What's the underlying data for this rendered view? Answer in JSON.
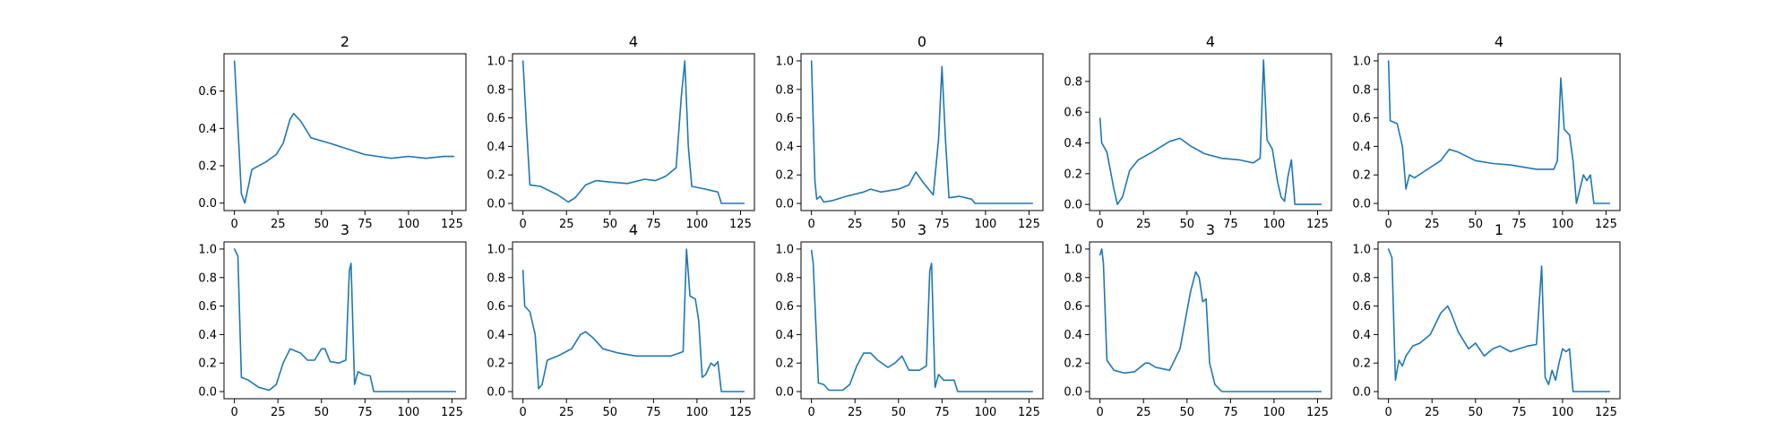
{
  "figure": {
    "line_color": "#1f77b4"
  },
  "chart_data": [
    {
      "type": "line",
      "title": "2",
      "xlim": [
        -6,
        133
      ],
      "ylim": [
        -0.04,
        0.8
      ],
      "xticks": [
        0,
        25,
        50,
        75,
        100,
        125
      ],
      "yticks": [
        0.0,
        0.2,
        0.4,
        0.6
      ],
      "yticklabels": [
        "0.0",
        "0.2",
        "0.4",
        "0.6"
      ],
      "points": [
        [
          0,
          0.76
        ],
        [
          4,
          0.05
        ],
        [
          6,
          0.0
        ],
        [
          10,
          0.18
        ],
        [
          18,
          0.22
        ],
        [
          24,
          0.26
        ],
        [
          28,
          0.32
        ],
        [
          32,
          0.45
        ],
        [
          34,
          0.48
        ],
        [
          38,
          0.44
        ],
        [
          44,
          0.35
        ],
        [
          55,
          0.32
        ],
        [
          65,
          0.29
        ],
        [
          75,
          0.26
        ],
        [
          90,
          0.24
        ],
        [
          100,
          0.25
        ],
        [
          110,
          0.24
        ],
        [
          120,
          0.25
        ],
        [
          126,
          0.25
        ]
      ]
    },
    {
      "type": "line",
      "title": "4",
      "xlim": [
        -6,
        133
      ],
      "ylim": [
        -0.05,
        1.05
      ],
      "xticks": [
        0,
        25,
        50,
        75,
        100,
        125
      ],
      "yticks": [
        0.0,
        0.2,
        0.4,
        0.6,
        0.8,
        1.0
      ],
      "yticklabels": [
        "0.0",
        "0.2",
        "0.4",
        "0.6",
        "0.8",
        "1.0"
      ],
      "points": [
        [
          0,
          1.0
        ],
        [
          2,
          0.55
        ],
        [
          4,
          0.13
        ],
        [
          10,
          0.12
        ],
        [
          20,
          0.06
        ],
        [
          26,
          0.01
        ],
        [
          30,
          0.04
        ],
        [
          36,
          0.13
        ],
        [
          42,
          0.16
        ],
        [
          50,
          0.15
        ],
        [
          60,
          0.14
        ],
        [
          70,
          0.17
        ],
        [
          76,
          0.16
        ],
        [
          82,
          0.19
        ],
        [
          88,
          0.25
        ],
        [
          91,
          0.75
        ],
        [
          93,
          1.0
        ],
        [
          95,
          0.4
        ],
        [
          97,
          0.12
        ],
        [
          105,
          0.1
        ],
        [
          112,
          0.08
        ],
        [
          114,
          0.0
        ],
        [
          127,
          0.0
        ]
      ]
    },
    {
      "type": "line",
      "title": "0",
      "xlim": [
        -6,
        133
      ],
      "ylim": [
        -0.05,
        1.05
      ],
      "xticks": [
        0,
        25,
        50,
        75,
        100,
        125
      ],
      "yticks": [
        0.0,
        0.2,
        0.4,
        0.6,
        0.8,
        1.0
      ],
      "yticklabels": [
        "0.0",
        "0.2",
        "0.4",
        "0.6",
        "0.8",
        "1.0"
      ],
      "points": [
        [
          0,
          1.0
        ],
        [
          2,
          0.16
        ],
        [
          3,
          0.03
        ],
        [
          5,
          0.05
        ],
        [
          7,
          0.01
        ],
        [
          12,
          0.02
        ],
        [
          20,
          0.05
        ],
        [
          30,
          0.08
        ],
        [
          34,
          0.1
        ],
        [
          40,
          0.08
        ],
        [
          50,
          0.1
        ],
        [
          56,
          0.13
        ],
        [
          60,
          0.22
        ],
        [
          64,
          0.15
        ],
        [
          70,
          0.06
        ],
        [
          73,
          0.45
        ],
        [
          75,
          0.96
        ],
        [
          77,
          0.45
        ],
        [
          79,
          0.04
        ],
        [
          85,
          0.05
        ],
        [
          92,
          0.03
        ],
        [
          94,
          0.0
        ],
        [
          127,
          0.0
        ]
      ]
    },
    {
      "type": "line",
      "title": "4",
      "xlim": [
        -6,
        133
      ],
      "ylim": [
        -0.04,
        0.98
      ],
      "xticks": [
        0,
        25,
        50,
        75,
        100,
        125
      ],
      "yticks": [
        0.0,
        0.2,
        0.4,
        0.6,
        0.8
      ],
      "yticklabels": [
        "0.0",
        "0.2",
        "0.4",
        "0.6",
        "0.8"
      ],
      "points": [
        [
          0,
          0.56
        ],
        [
          1,
          0.4
        ],
        [
          4,
          0.34
        ],
        [
          8,
          0.1
        ],
        [
          10,
          0.0
        ],
        [
          13,
          0.05
        ],
        [
          17,
          0.22
        ],
        [
          22,
          0.29
        ],
        [
          30,
          0.34
        ],
        [
          40,
          0.41
        ],
        [
          46,
          0.43
        ],
        [
          52,
          0.38
        ],
        [
          60,
          0.33
        ],
        [
          70,
          0.3
        ],
        [
          80,
          0.29
        ],
        [
          88,
          0.27
        ],
        [
          92,
          0.3
        ],
        [
          94,
          0.94
        ],
        [
          96,
          0.42
        ],
        [
          99,
          0.36
        ],
        [
          102,
          0.15
        ],
        [
          104,
          0.05
        ],
        [
          106,
          0.02
        ],
        [
          108,
          0.18
        ],
        [
          110,
          0.29
        ],
        [
          112,
          0.0
        ],
        [
          127,
          0.0
        ]
      ]
    },
    {
      "type": "line",
      "title": "4",
      "xlim": [
        -6,
        133
      ],
      "ylim": [
        -0.05,
        1.05
      ],
      "xticks": [
        0,
        25,
        50,
        75,
        100,
        125
      ],
      "yticks": [
        0.0,
        0.2,
        0.4,
        0.6,
        0.8,
        1.0
      ],
      "yticklabels": [
        "0.0",
        "0.2",
        "0.4",
        "0.6",
        "0.8",
        "1.0"
      ],
      "points": [
        [
          0,
          1.0
        ],
        [
          1,
          0.58
        ],
        [
          5,
          0.56
        ],
        [
          8,
          0.4
        ],
        [
          10,
          0.1
        ],
        [
          12,
          0.2
        ],
        [
          15,
          0.18
        ],
        [
          20,
          0.22
        ],
        [
          30,
          0.3
        ],
        [
          35,
          0.38
        ],
        [
          40,
          0.36
        ],
        [
          50,
          0.3
        ],
        [
          60,
          0.28
        ],
        [
          70,
          0.27
        ],
        [
          85,
          0.24
        ],
        [
          95,
          0.24
        ],
        [
          97,
          0.3
        ],
        [
          99,
          0.88
        ],
        [
          101,
          0.52
        ],
        [
          104,
          0.48
        ],
        [
          106,
          0.3
        ],
        [
          108,
          0.0
        ],
        [
          112,
          0.2
        ],
        [
          114,
          0.16
        ],
        [
          116,
          0.2
        ],
        [
          118,
          0.0
        ],
        [
          127,
          0.0
        ]
      ]
    },
    {
      "type": "line",
      "title": "3",
      "xlim": [
        -6,
        133
      ],
      "ylim": [
        -0.05,
        1.05
      ],
      "xticks": [
        0,
        25,
        50,
        75,
        100,
        125
      ],
      "yticks": [
        0.0,
        0.2,
        0.4,
        0.6,
        0.8,
        1.0
      ],
      "yticklabels": [
        "0.0",
        "0.2",
        "0.4",
        "0.6",
        "0.8",
        "1.0"
      ],
      "points": [
        [
          0,
          1.0
        ],
        [
          2,
          0.95
        ],
        [
          4,
          0.1
        ],
        [
          8,
          0.08
        ],
        [
          14,
          0.03
        ],
        [
          20,
          0.01
        ],
        [
          24,
          0.05
        ],
        [
          28,
          0.2
        ],
        [
          32,
          0.3
        ],
        [
          38,
          0.27
        ],
        [
          42,
          0.22
        ],
        [
          46,
          0.22
        ],
        [
          50,
          0.3
        ],
        [
          52,
          0.3
        ],
        [
          55,
          0.21
        ],
        [
          60,
          0.2
        ],
        [
          64,
          0.22
        ],
        [
          66,
          0.85
        ],
        [
          67,
          0.9
        ],
        [
          69,
          0.05
        ],
        [
          71,
          0.14
        ],
        [
          74,
          0.12
        ],
        [
          78,
          0.11
        ],
        [
          80,
          0.0
        ],
        [
          127,
          0.0
        ]
      ]
    },
    {
      "type": "line",
      "title": "4",
      "xlim": [
        -6,
        133
      ],
      "ylim": [
        -0.05,
        1.05
      ],
      "xticks": [
        0,
        25,
        50,
        75,
        100,
        125
      ],
      "yticks": [
        0.0,
        0.2,
        0.4,
        0.6,
        0.8,
        1.0
      ],
      "yticklabels": [
        "0.0",
        "0.2",
        "0.4",
        "0.6",
        "0.8",
        "1.0"
      ],
      "points": [
        [
          0,
          0.85
        ],
        [
          1,
          0.6
        ],
        [
          4,
          0.56
        ],
        [
          7,
          0.4
        ],
        [
          9,
          0.02
        ],
        [
          11,
          0.05
        ],
        [
          14,
          0.22
        ],
        [
          20,
          0.25
        ],
        [
          28,
          0.3
        ],
        [
          33,
          0.4
        ],
        [
          36,
          0.42
        ],
        [
          40,
          0.38
        ],
        [
          46,
          0.3
        ],
        [
          55,
          0.27
        ],
        [
          65,
          0.25
        ],
        [
          75,
          0.25
        ],
        [
          85,
          0.25
        ],
        [
          92,
          0.28
        ],
        [
          94,
          1.0
        ],
        [
          96,
          0.67
        ],
        [
          99,
          0.65
        ],
        [
          101,
          0.5
        ],
        [
          103,
          0.1
        ],
        [
          105,
          0.12
        ],
        [
          108,
          0.2
        ],
        [
          110,
          0.18
        ],
        [
          112,
          0.21
        ],
        [
          114,
          0.0
        ],
        [
          127,
          0.0
        ]
      ]
    },
    {
      "type": "line",
      "title": "3",
      "xlim": [
        -6,
        133
      ],
      "ylim": [
        -0.05,
        1.05
      ],
      "xticks": [
        0,
        25,
        50,
        75,
        100,
        125
      ],
      "yticks": [
        0.0,
        0.2,
        0.4,
        0.6,
        0.8,
        1.0
      ],
      "yticklabels": [
        "0.0",
        "0.2",
        "0.4",
        "0.6",
        "0.8",
        "1.0"
      ],
      "points": [
        [
          0,
          0.99
        ],
        [
          1,
          0.9
        ],
        [
          4,
          0.06
        ],
        [
          7,
          0.05
        ],
        [
          10,
          0.01
        ],
        [
          18,
          0.01
        ],
        [
          22,
          0.05
        ],
        [
          26,
          0.18
        ],
        [
          30,
          0.27
        ],
        [
          34,
          0.27
        ],
        [
          38,
          0.22
        ],
        [
          44,
          0.17
        ],
        [
          48,
          0.2
        ],
        [
          52,
          0.25
        ],
        [
          56,
          0.15
        ],
        [
          62,
          0.15
        ],
        [
          66,
          0.18
        ],
        [
          68,
          0.85
        ],
        [
          69,
          0.9
        ],
        [
          71,
          0.03
        ],
        [
          73,
          0.12
        ],
        [
          76,
          0.08
        ],
        [
          82,
          0.08
        ],
        [
          84,
          0.0
        ],
        [
          127,
          0.0
        ]
      ]
    },
    {
      "type": "line",
      "title": "3",
      "xlim": [
        -6,
        133
      ],
      "ylim": [
        -0.05,
        1.05
      ],
      "xticks": [
        0,
        25,
        50,
        75,
        100,
        125
      ],
      "yticks": [
        0.0,
        0.2,
        0.4,
        0.6,
        0.8,
        1.0
      ],
      "yticklabels": [
        "0.0",
        "0.2",
        "0.4",
        "0.6",
        "0.8",
        "1.0"
      ],
      "points": [
        [
          0,
          0.96
        ],
        [
          1,
          1.0
        ],
        [
          2,
          0.9
        ],
        [
          4,
          0.22
        ],
        [
          8,
          0.15
        ],
        [
          14,
          0.13
        ],
        [
          20,
          0.14
        ],
        [
          26,
          0.2
        ],
        [
          28,
          0.2
        ],
        [
          32,
          0.17
        ],
        [
          40,
          0.15
        ],
        [
          46,
          0.3
        ],
        [
          52,
          0.7
        ],
        [
          55,
          0.84
        ],
        [
          57,
          0.8
        ],
        [
          59,
          0.63
        ],
        [
          61,
          0.65
        ],
        [
          63,
          0.2
        ],
        [
          66,
          0.05
        ],
        [
          70,
          0.0
        ],
        [
          127,
          0.0
        ]
      ]
    },
    {
      "type": "line",
      "title": "1",
      "xlim": [
        -6,
        133
      ],
      "ylim": [
        -0.05,
        1.05
      ],
      "xticks": [
        0,
        25,
        50,
        75,
        100,
        125
      ],
      "yticks": [
        0.0,
        0.2,
        0.4,
        0.6,
        0.8,
        1.0
      ],
      "yticklabels": [
        "0.0",
        "0.2",
        "0.4",
        "0.6",
        "0.8",
        "1.0"
      ],
      "points": [
        [
          0,
          1.0
        ],
        [
          2,
          0.94
        ],
        [
          4,
          0.08
        ],
        [
          6,
          0.22
        ],
        [
          8,
          0.18
        ],
        [
          10,
          0.25
        ],
        [
          14,
          0.32
        ],
        [
          18,
          0.34
        ],
        [
          24,
          0.4
        ],
        [
          30,
          0.55
        ],
        [
          34,
          0.6
        ],
        [
          36,
          0.55
        ],
        [
          40,
          0.42
        ],
        [
          46,
          0.3
        ],
        [
          50,
          0.34
        ],
        [
          55,
          0.25
        ],
        [
          60,
          0.3
        ],
        [
          64,
          0.32
        ],
        [
          70,
          0.28
        ],
        [
          75,
          0.3
        ],
        [
          80,
          0.32
        ],
        [
          85,
          0.33
        ],
        [
          88,
          0.88
        ],
        [
          90,
          0.1
        ],
        [
          92,
          0.05
        ],
        [
          94,
          0.15
        ],
        [
          96,
          0.08
        ],
        [
          98,
          0.2
        ],
        [
          100,
          0.3
        ],
        [
          102,
          0.28
        ],
        [
          104,
          0.3
        ],
        [
          106,
          0.0
        ],
        [
          127,
          0.0
        ]
      ]
    }
  ]
}
